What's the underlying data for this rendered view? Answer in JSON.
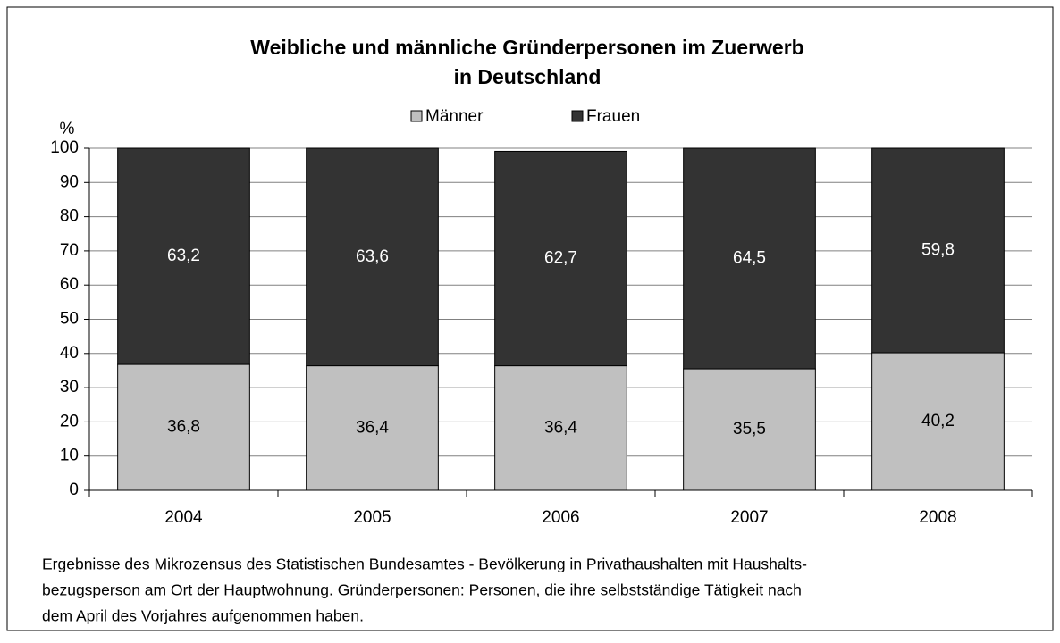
{
  "chart_data": {
    "type": "stacked_bar",
    "title": [
      "Weibliche und männliche Gründerpersonen im Zuerwerb",
      "in Deutschland"
    ],
    "ylabel": "%",
    "categories": [
      "2004",
      "2005",
      "2006",
      "2007",
      "2008"
    ],
    "series": [
      {
        "name": "Männer",
        "color": "#c0c0c0",
        "values": [
          36.8,
          36.4,
          36.4,
          35.5,
          40.2
        ],
        "value_labels": [
          "36,8",
          "36,4",
          "36,4",
          "35,5",
          "40,2"
        ]
      },
      {
        "name": "Frauen",
        "color": "#333333",
        "values": [
          63.2,
          63.6,
          62.7,
          64.5,
          59.8
        ],
        "value_labels": [
          "63,2",
          "63,6",
          "62,7",
          "64,5",
          "59,8"
        ]
      }
    ],
    "ylim": [
      0,
      100
    ],
    "yticks": [
      0,
      10,
      20,
      30,
      40,
      50,
      60,
      70,
      80,
      90,
      100
    ],
    "grid": true,
    "legend": "top",
    "note": [
      "Ergebnisse des Mikrozensus des Statistischen Bundesamtes - Bevölkerung in Privathaushalten mit Haushalts-",
      "bezugsperson am Ort der Hauptwohnung. Gründerpersonen: Personen, die ihre selbstständige Tätigkeit nach",
      "dem April des Vorjahres aufgenommen haben."
    ]
  }
}
